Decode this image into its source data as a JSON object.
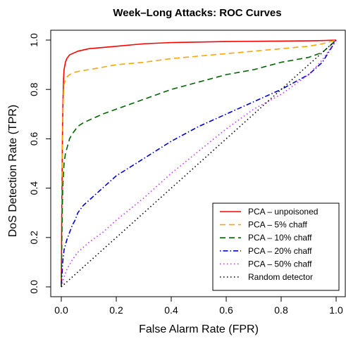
{
  "chart_data": {
    "type": "line",
    "title": "Week–Long Attacks: ROC Curves",
    "xlabel": "False Alarm Rate (FPR)",
    "ylabel": "DoS Detection Rate (TPR)",
    "xlim": [
      0,
      1
    ],
    "ylim": [
      0,
      1
    ],
    "xticks": [
      {
        "value": 0.0,
        "label": "0.0"
      },
      {
        "value": 0.2,
        "label": "0.2"
      },
      {
        "value": 0.4,
        "label": "0.4"
      },
      {
        "value": 0.6,
        "label": "0.6"
      },
      {
        "value": 0.8,
        "label": "0.8"
      },
      {
        "value": 1.0,
        "label": "1.0"
      }
    ],
    "yticks": [
      {
        "value": 0.0,
        "label": "0.0"
      },
      {
        "value": 0.2,
        "label": "0.2"
      },
      {
        "value": 0.4,
        "label": "0.4"
      },
      {
        "value": 0.6,
        "label": "0.6"
      },
      {
        "value": 0.8,
        "label": "0.8"
      },
      {
        "value": 1.0,
        "label": "1.0"
      }
    ],
    "grid": false,
    "legend_position": "bottom-right",
    "series": [
      {
        "name": "PCA – unpoisoned",
        "color": "#ff0000",
        "dash": "solid",
        "x": [
          0,
          0.002,
          0.004,
          0.006,
          0.008,
          0.01,
          0.015,
          0.02,
          0.03,
          0.04,
          0.05,
          0.06,
          0.08,
          0.1,
          0.15,
          0.2,
          0.3,
          0.4,
          0.5,
          0.6,
          0.7,
          0.8,
          0.9,
          0.95,
          1.0
        ],
        "y": [
          0,
          0.35,
          0.6,
          0.75,
          0.84,
          0.88,
          0.91,
          0.925,
          0.94,
          0.945,
          0.95,
          0.955,
          0.96,
          0.965,
          0.97,
          0.975,
          0.985,
          0.99,
          0.992,
          0.994,
          0.995,
          0.996,
          0.997,
          0.998,
          1.0
        ]
      },
      {
        "name": "PCA – 5% chaff",
        "color": "#ffa500",
        "dash": "dashed",
        "x": [
          0,
          0.002,
          0.004,
          0.006,
          0.008,
          0.01,
          0.015,
          0.02,
          0.03,
          0.04,
          0.05,
          0.07,
          0.1,
          0.15,
          0.2,
          0.3,
          0.4,
          0.5,
          0.6,
          0.7,
          0.8,
          0.9,
          0.95,
          1.0
        ],
        "y": [
          0,
          0.3,
          0.55,
          0.7,
          0.78,
          0.82,
          0.84,
          0.85,
          0.86,
          0.865,
          0.87,
          0.875,
          0.88,
          0.89,
          0.9,
          0.91,
          0.925,
          0.935,
          0.945,
          0.955,
          0.965,
          0.975,
          0.985,
          1.0
        ]
      },
      {
        "name": "PCA – 10% chaff",
        "color": "#006400",
        "dash": "dashed",
        "x": [
          0,
          0.002,
          0.005,
          0.01,
          0.015,
          0.02,
          0.03,
          0.04,
          0.05,
          0.06,
          0.08,
          0.1,
          0.15,
          0.2,
          0.3,
          0.4,
          0.5,
          0.6,
          0.7,
          0.8,
          0.9,
          0.95,
          1.0
        ],
        "y": [
          0,
          0.2,
          0.4,
          0.5,
          0.54,
          0.56,
          0.6,
          0.62,
          0.635,
          0.65,
          0.665,
          0.675,
          0.7,
          0.72,
          0.76,
          0.8,
          0.83,
          0.86,
          0.88,
          0.91,
          0.93,
          0.95,
          1.0
        ]
      },
      {
        "name": "PCA – 20% chaff",
        "color": "#0000cd",
        "dash": "dotdash",
        "x": [
          0,
          0.005,
          0.01,
          0.02,
          0.03,
          0.04,
          0.05,
          0.06,
          0.08,
          0.1,
          0.15,
          0.2,
          0.3,
          0.4,
          0.5,
          0.6,
          0.7,
          0.8,
          0.85,
          0.9,
          0.95,
          1.0
        ],
        "y": [
          0,
          0.1,
          0.15,
          0.19,
          0.22,
          0.25,
          0.27,
          0.3,
          0.33,
          0.35,
          0.4,
          0.45,
          0.52,
          0.59,
          0.65,
          0.7,
          0.75,
          0.8,
          0.83,
          0.86,
          0.91,
          1.0
        ]
      },
      {
        "name": "PCA – 50% chaff",
        "color": "#cc33ff",
        "dash": "dotted",
        "x": [
          0,
          0.01,
          0.02,
          0.04,
          0.06,
          0.08,
          0.1,
          0.15,
          0.2,
          0.3,
          0.4,
          0.5,
          0.6,
          0.7,
          0.8,
          0.85,
          0.9,
          0.95,
          1.0
        ],
        "y": [
          0,
          0.04,
          0.07,
          0.11,
          0.14,
          0.16,
          0.18,
          0.22,
          0.27,
          0.36,
          0.46,
          0.55,
          0.64,
          0.72,
          0.78,
          0.82,
          0.86,
          0.92,
          1.0
        ]
      },
      {
        "name": "Random detector",
        "color": "#000000",
        "dash": "dotted",
        "x": [
          0,
          1
        ],
        "y": [
          0,
          1
        ]
      }
    ]
  }
}
